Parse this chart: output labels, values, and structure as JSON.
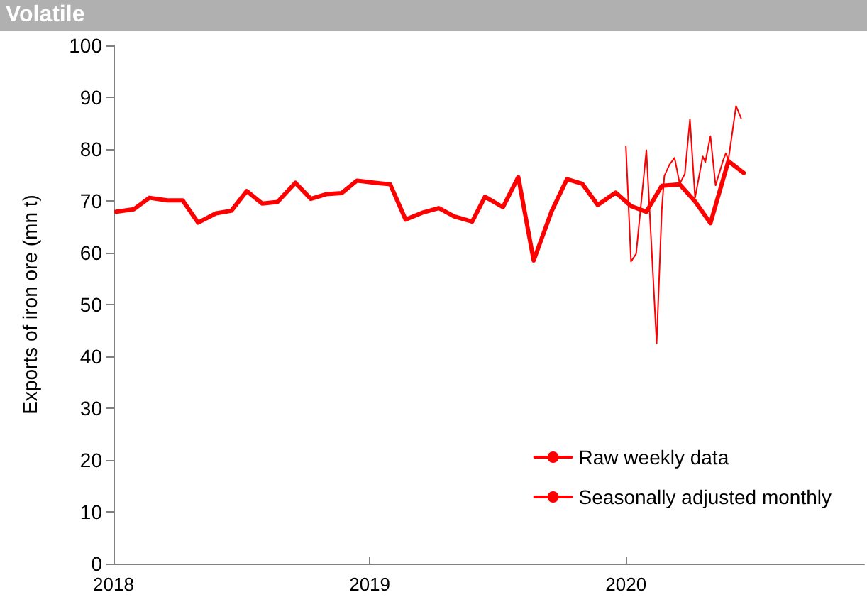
{
  "chart_data": {
    "type": "line",
    "title": "Volatile",
    "ylabel": "Exports of iron ore (mn t)",
    "xlim": [
      2018,
      2020.93
    ],
    "xticks": [
      2018,
      2019,
      2020
    ],
    "ylim": [
      0,
      100
    ],
    "yticks": [
      0,
      10,
      20,
      30,
      40,
      50,
      60,
      70,
      80,
      90,
      100
    ],
    "grid": false,
    "legend": "bottom right",
    "marker": "none",
    "line_style": "solid",
    "series": [
      {
        "name": "Raw weekly data",
        "color": "#ff0000",
        "x": [
          2020.0,
          2020.02,
          2020.04,
          2020.08,
          2020.12,
          2020.14,
          2020.15,
          2020.17,
          2020.19,
          2020.21,
          2020.23,
          2020.25,
          2020.27,
          2020.3,
          2020.31,
          2020.33,
          2020.35,
          2020.38,
          2020.39,
          2020.4,
          2020.43,
          2020.45
        ],
        "values": [
          80.5,
          58.3,
          59.8,
          79.8,
          42.5,
          68.2,
          74.8,
          77.0,
          78.3,
          73.3,
          75.2,
          85.7,
          70.6,
          78.6,
          77.5,
          82.5,
          73.0,
          77.9,
          79.2,
          77.9,
          88.3,
          85.9
        ]
      },
      {
        "name": "Seasonally adjusted monthly",
        "color": "#ff0000",
        "x": [
          2018.01,
          2018.08,
          2018.14,
          2018.21,
          2018.27,
          2018.33,
          2018.4,
          2018.46,
          2018.52,
          2018.58,
          2018.64,
          2018.71,
          2018.77,
          2018.83,
          2018.89,
          2018.95,
          2019.02,
          2019.08,
          2019.14,
          2019.21,
          2019.27,
          2019.33,
          2019.4,
          2019.45,
          2019.52,
          2019.58,
          2019.64,
          2019.71,
          2019.77,
          2019.83,
          2019.89,
          2019.96,
          2020.02,
          2020.08,
          2020.14,
          2020.21,
          2020.27,
          2020.33,
          2020.4,
          2020.46
        ],
        "values": [
          67.9,
          68.4,
          70.6,
          70.1,
          70.1,
          65.8,
          67.6,
          68.1,
          71.9,
          69.5,
          69.8,
          73.5,
          70.4,
          71.3,
          71.5,
          73.9,
          73.5,
          73.2,
          66.4,
          67.8,
          68.6,
          67.0,
          66.0,
          70.8,
          68.8,
          74.6,
          58.5,
          68.0,
          74.2,
          73.3,
          69.2,
          71.6,
          69.0,
          67.9,
          72.9,
          73.2,
          69.9,
          65.7,
          77.7,
          75.4
        ]
      }
    ]
  }
}
